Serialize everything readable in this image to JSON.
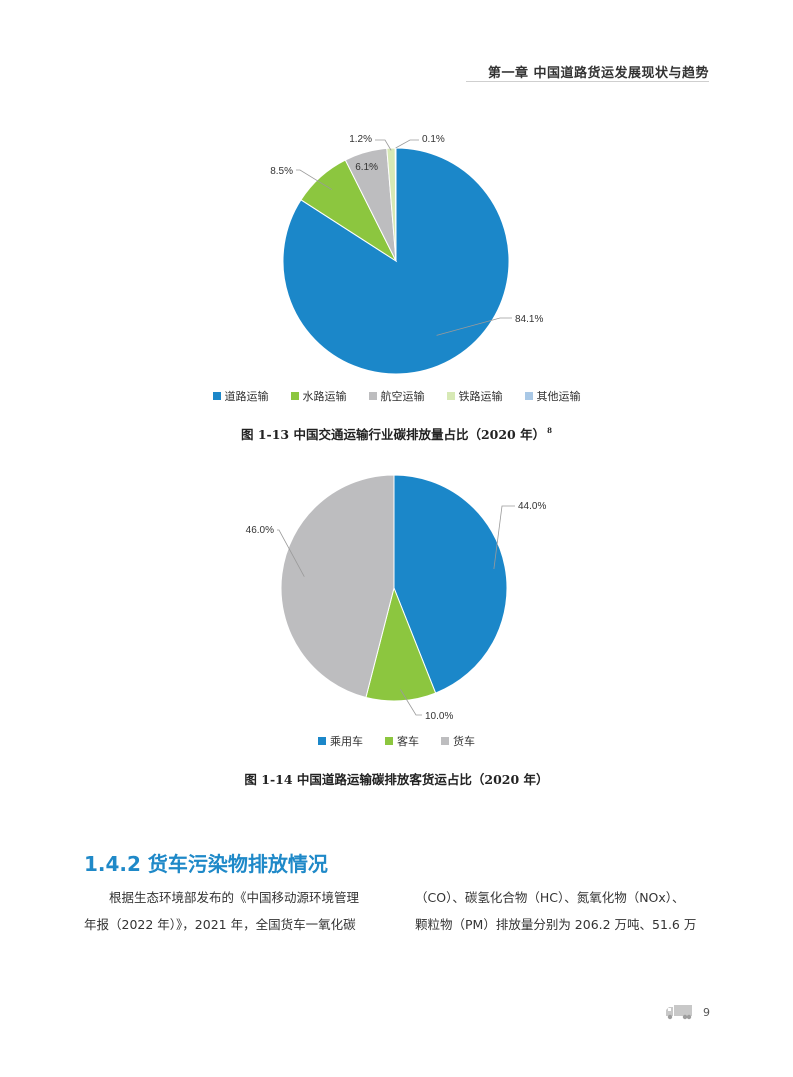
{
  "header": {
    "chapter_title": "第一章  中国道路货运发展现状与趋势"
  },
  "figures": {
    "fig1": {
      "caption": "图 1-13 中国交通运输行业碳排放量占比（2020 年）",
      "footnote_ref": "8"
    },
    "fig2": {
      "caption": "图 1-14 中国道路运输碳排放客货运占比（2020 年）"
    }
  },
  "chart_data": [
    {
      "type": "pie",
      "title": "图 1-13 中国交通运输行业碳排放量占比（2020 年）",
      "categories": [
        "道路运输",
        "水路运输",
        "航空运输",
        "铁路运输",
        "其他运输"
      ],
      "values": [
        84.1,
        8.5,
        6.1,
        1.2,
        0.1
      ],
      "labels": [
        "84.1%",
        "8.5%",
        "6.1%",
        "1.2%",
        "0.1%"
      ],
      "colors": [
        "#1b87c9",
        "#8cc63f",
        "#bdbdbf",
        "#d7e9b5",
        "#a9c8e6"
      ],
      "legend_position": "bottom"
    },
    {
      "type": "pie",
      "title": "图 1-14 中国道路运输碳排放客货运占比（2020 年）",
      "categories": [
        "乘用车",
        "客车",
        "货车"
      ],
      "values": [
        44.0,
        10.0,
        46.0
      ],
      "labels": [
        "44.0%",
        "10.0%",
        "46.0%"
      ],
      "colors": [
        "#1b87c9",
        "#8cc63f",
        "#bdbdbf"
      ],
      "legend_position": "bottom"
    }
  ],
  "section": {
    "heading": "1.4.2 货车污染物排放情况",
    "col_left_lines": [
      "根据生态环境部发布的《中国移动源环境管理",
      "年报（2022 年）》，2021 年，全国货车一氧化碳"
    ],
    "col_right_lines": [
      "（CO）、碳氢化合物（HC）、氮氧化物（NOx）、",
      "颗粒物（PM）排放量分别为 206.2 万吨、51.6 万"
    ]
  },
  "footer": {
    "page_number": "9",
    "icon": "truck-icon"
  }
}
